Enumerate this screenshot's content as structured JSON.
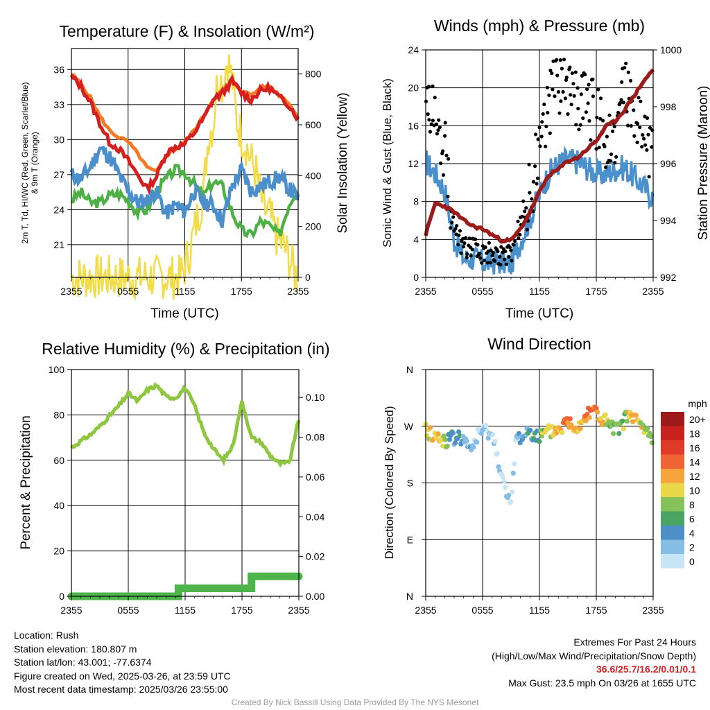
{
  "charts": {
    "temperature": {
      "title": "Temperature (F) & Insolation (W/m²)",
      "ylabel_lines": [
        "2m T, Td, HI/WC (Red, Green, Scarlet/Blue)",
        "& 9m T (Orange)"
      ],
      "y2label": "Solar Insolation (Yellow)",
      "xlabel": "Time (UTC)"
    },
    "winds": {
      "title": "Winds (mph) & Pressure (mb)",
      "ylabel": "Sonic Wind & Gust (Blue, Black)",
      "y2label": "Station Pressure (Maroon)",
      "xlabel": "Time (UTC)"
    },
    "humidity": {
      "title": "Relative Humidity (%) & Precipitation (in)",
      "ylabel": "Percent & Precipitation"
    },
    "direction": {
      "title": "Wind Direction",
      "ylabel": "Direction (Colored By Speed)",
      "legend_unit": "mph"
    }
  },
  "colors": {
    "temp": "#d42020",
    "temp9m": "#f47a26",
    "dewpoint": "#4db045",
    "windchill": "#4a8fcc",
    "solar": "#f2dc4a",
    "wind": "#4a90cc",
    "gust": "#000000",
    "pressure": "#9b1b1b",
    "rh": "#8dc63f",
    "precip": "#4db34a"
  },
  "chart_data": [
    {
      "type": "line",
      "title": "Temperature (F) & Insolation (W/m²)",
      "x_ticks": [
        "2355",
        "0555",
        "1155",
        "1755",
        "2355"
      ],
      "y_ticks": [
        21,
        24,
        27,
        30,
        33,
        36
      ],
      "ylim": [
        18.2,
        37.8
      ],
      "y2_ticks": [
        0,
        200,
        400,
        600,
        800
      ],
      "y2lim": [
        0,
        900
      ],
      "x_hours": [
        0,
        24
      ],
      "series": [
        {
          "key": "temp9m",
          "x": [
            0,
            1,
            2,
            3,
            4,
            5,
            6,
            7,
            8,
            9,
            10,
            11,
            12,
            13,
            14,
            15,
            16,
            17,
            18,
            19,
            20,
            21,
            22,
            23,
            24
          ],
          "values": [
            35.6,
            34.8,
            33.6,
            32.0,
            30.8,
            30.2,
            29.8,
            28.8,
            27.6,
            27.2,
            28.6,
            29.2,
            29.8,
            30.8,
            32.0,
            33.5,
            34.2,
            35.0,
            34.2,
            33.8,
            34.4,
            34.6,
            33.8,
            33.2,
            31.8
          ]
        },
        {
          "key": "temp",
          "x": [
            0,
            1,
            2,
            3,
            4,
            5,
            6,
            7,
            8,
            9,
            10,
            11,
            12,
            13,
            14,
            15,
            16,
            17,
            18,
            19,
            20,
            21,
            22,
            23,
            24
          ],
          "values": [
            35.4,
            34.6,
            33.2,
            31.4,
            29.8,
            29.2,
            28.2,
            27.0,
            25.8,
            26.8,
            28.8,
            29.4,
            29.6,
            30.6,
            31.8,
            33.4,
            34.0,
            35.0,
            34.0,
            33.4,
            34.2,
            34.4,
            33.6,
            33.0,
            31.8
          ]
        },
        {
          "key": "dewpoint",
          "x": [
            0,
            1,
            2,
            3,
            4,
            5,
            6,
            7,
            8,
            9,
            10,
            11,
            12,
            13,
            14,
            15,
            16,
            17,
            18,
            19,
            20,
            21,
            22,
            23,
            24
          ],
          "values": [
            24.8,
            25.5,
            24.6,
            24.6,
            25.2,
            25.4,
            24.8,
            23.8,
            24.0,
            25.6,
            26.6,
            27.4,
            27.2,
            26.2,
            25.2,
            26.4,
            26.0,
            23.8,
            22.2,
            21.8,
            23.0,
            22.6,
            21.8,
            24.4,
            26.0
          ]
        },
        {
          "key": "windchill",
          "x": [
            0,
            1,
            2,
            3,
            4,
            5,
            6,
            7,
            8,
            9,
            10,
            11,
            12,
            13,
            14,
            15,
            16,
            17,
            18,
            19,
            20,
            21,
            22,
            23,
            24
          ],
          "values": [
            27.0,
            26.6,
            27.6,
            29.2,
            28.6,
            27.0,
            25.6,
            24.6,
            24.8,
            25.6,
            23.6,
            24.4,
            23.8,
            25.6,
            24.6,
            24.4,
            23.0,
            26.0,
            27.4,
            25.6,
            26.0,
            26.4,
            26.8,
            25.8,
            25.0
          ]
        },
        {
          "key": "solar",
          "axis": "y2",
          "x": [
            0,
            6,
            10,
            11.5,
            12,
            12.5,
            13,
            13.5,
            14,
            14.5,
            15,
            15.5,
            16,
            16.5,
            17,
            17.5,
            18,
            18.5,
            19,
            19.5,
            20,
            20.5,
            21,
            21.5,
            22,
            22.5,
            23,
            23.5,
            24
          ],
          "values": [
            0,
            0,
            0,
            0,
            40,
            100,
            180,
            260,
            340,
            560,
            600,
            800,
            760,
            860,
            780,
            620,
            560,
            520,
            460,
            420,
            320,
            260,
            240,
            180,
            140,
            120,
            80,
            30,
            0
          ]
        }
      ]
    },
    {
      "type": "line",
      "title": "Winds (mph) & Pressure (mb)",
      "x_ticks": [
        "2355",
        "0555",
        "1155",
        "1755",
        "2355"
      ],
      "y_ticks": [
        0,
        4,
        8,
        12,
        16,
        20,
        24
      ],
      "ylim": [
        0,
        24
      ],
      "y2_ticks": [
        992,
        994,
        996,
        998,
        1000
      ],
      "y2lim": [
        992,
        1000
      ],
      "series": [
        {
          "key": "pressure",
          "axis": "y2",
          "x": [
            0,
            1,
            2,
            3,
            4,
            5,
            6,
            7,
            8,
            9,
            10,
            11,
            12,
            13,
            14,
            15,
            16,
            17,
            18,
            19,
            20,
            21,
            22,
            23,
            24
          ],
          "values": [
            993.5,
            994.6,
            994.5,
            994.3,
            994.0,
            993.8,
            993.7,
            993.5,
            993.3,
            993.3,
            993.7,
            994.3,
            995.0,
            995.6,
            995.8,
            996.1,
            996.2,
            996.5,
            996.8,
            997.3,
            997.5,
            997.9,
            998.4,
            998.9,
            999.3
          ]
        },
        {
          "key": "wind",
          "x": [
            0,
            1,
            2,
            3,
            4,
            5,
            6,
            7,
            8,
            9,
            10,
            11,
            12,
            13,
            14,
            15,
            16,
            17,
            18,
            19,
            20,
            21,
            22,
            23,
            24
          ],
          "values": [
            12.2,
            11.0,
            9.2,
            4.0,
            2.0,
            2.0,
            1.6,
            1.6,
            1.6,
            1.4,
            3.8,
            6.2,
            8.8,
            11.0,
            12.0,
            12.4,
            12.2,
            11.6,
            11.0,
            10.8,
            11.4,
            11.6,
            10.6,
            9.6,
            8.4
          ]
        },
        {
          "key": "gust",
          "type": "scatter",
          "x": [
            0,
            1,
            2,
            3,
            4,
            5,
            6,
            7,
            8,
            9,
            10,
            11,
            12,
            13,
            14,
            15,
            16,
            17,
            18,
            19,
            20,
            21,
            22,
            23,
            24
          ],
          "values": [
            19.5,
            16.5,
            14.0,
            5.0,
            3.0,
            3.0,
            2.5,
            2.5,
            2.5,
            2.0,
            6.0,
            9.0,
            13.5,
            18.5,
            20.5,
            20.0,
            19.0,
            18.0,
            17.0,
            14.5,
            15.5,
            19.5,
            16.5,
            15.0,
            12.5
          ]
        }
      ]
    },
    {
      "type": "line",
      "title": "Relative Humidity (%) & Precipitation (in)",
      "x_ticks": [
        "2355",
        "0555",
        "1155",
        "1755",
        "2355"
      ],
      "y_ticks": [
        0,
        20,
        40,
        60,
        80,
        100
      ],
      "ylim": [
        0,
        100
      ],
      "y2_ticks": [
        "0.00",
        "0.02",
        "0.04",
        "0.06",
        "0.08",
        "0.10"
      ],
      "y2lim": [
        0,
        0.114
      ],
      "series": [
        {
          "key": "rh",
          "x": [
            0,
            1,
            2,
            3,
            4,
            5,
            6,
            7,
            8,
            9,
            10,
            11,
            12,
            13,
            14,
            15,
            16,
            17,
            18,
            19,
            20,
            21,
            22,
            23,
            24
          ],
          "values": [
            65.5,
            68.5,
            71.2,
            75.0,
            79.5,
            84.0,
            89.5,
            86.0,
            91.0,
            93.0,
            88.0,
            87.5,
            92.0,
            84.0,
            72.0,
            65.0,
            60.0,
            66.0,
            86.0,
            70.0,
            68.0,
            62.0,
            58.5,
            59.0,
            78.0
          ]
        },
        {
          "key": "precip",
          "axis": "y2",
          "step": true,
          "x": [
            0,
            11.3,
            11.3,
            19,
            19,
            24
          ],
          "values": [
            0.0,
            0.0,
            0.004,
            0.004,
            0.01,
            0.01
          ]
        }
      ]
    },
    {
      "type": "scatter",
      "title": "Wind Direction",
      "x_ticks": [
        "2355",
        "0555",
        "1155",
        "1755",
        "2355"
      ],
      "y_ticks": [
        "N",
        "E",
        "S",
        "W",
        "N"
      ],
      "ylim": [
        0,
        360
      ],
      "legend_title": "mph",
      "legend_labels": [
        "20+",
        "18",
        "16",
        "14",
        "12",
        "10",
        "8",
        "6",
        "4",
        "2",
        "0"
      ],
      "legend_colors": [
        "#9e1a1a",
        "#c8221f",
        "#e03a28",
        "#ef6433",
        "#f8a43c",
        "#e8d84a",
        "#86c25a",
        "#4aa565",
        "#4d8fc8",
        "#86bde4",
        "#c7e5f6"
      ],
      "x": [
        0,
        0.5,
        1,
        1.5,
        2,
        2.5,
        3,
        3.5,
        4,
        4.5,
        5,
        5.5,
        6,
        6.5,
        7,
        7.5,
        8,
        8.5,
        9,
        9.5,
        10,
        10.5,
        11,
        11.5,
        12,
        12.5,
        13,
        13.5,
        14,
        14.5,
        15,
        15.5,
        16,
        16.5,
        17,
        17.5,
        18,
        18.5,
        19,
        19.5,
        20,
        20.5,
        21,
        21.5,
        22,
        22.5,
        23,
        23.5,
        24
      ],
      "values": [
        265,
        258,
        253,
        250,
        248,
        248,
        250,
        252,
        250,
        230,
        240,
        255,
        260,
        265,
        255,
        230,
        195,
        160,
        140,
        250,
        252,
        258,
        262,
        258,
        252,
        257,
        260,
        262,
        265,
        270,
        278,
        272,
        270,
        278,
        290,
        300,
        292,
        280,
        278,
        268,
        262,
        270,
        280,
        288,
        282,
        275,
        265,
        257,
        248
      ],
      "speeds": [
        10,
        11,
        13,
        12,
        9,
        7,
        4,
        6,
        3,
        3,
        2,
        3,
        2,
        2,
        2,
        2,
        1,
        1,
        1,
        2,
        3,
        4,
        5,
        5,
        6,
        9,
        10,
        11,
        12,
        13,
        14,
        13,
        12,
        13,
        14,
        15,
        14,
        13,
        10,
        9,
        8,
        8,
        9,
        11,
        12,
        12,
        10,
        8,
        7
      ]
    }
  ],
  "info_left": [
    "Location: Rush",
    "Station elevation: 180.807 m",
    "Station lat/lon: 43.001; -77.6374",
    "Figure created on Wed, 2025-03-26, at 23:59 UTC",
    "Most recent data timestamp: 2025/03/26 23:55:00"
  ],
  "info_right": {
    "heading": "Extremes For Past 24 Hours",
    "subheading": "(High/Low/Max Wind/Precipitation/Snow Depth)",
    "values": "36.6/25.7/16.2/0.01/0.1",
    "max_gust": "Max Gust: 23.5 mph On 03/26 at 1655 UTC"
  },
  "credit": "Created By Nick Bassill Using Data Provided By The NYS Mesonet"
}
